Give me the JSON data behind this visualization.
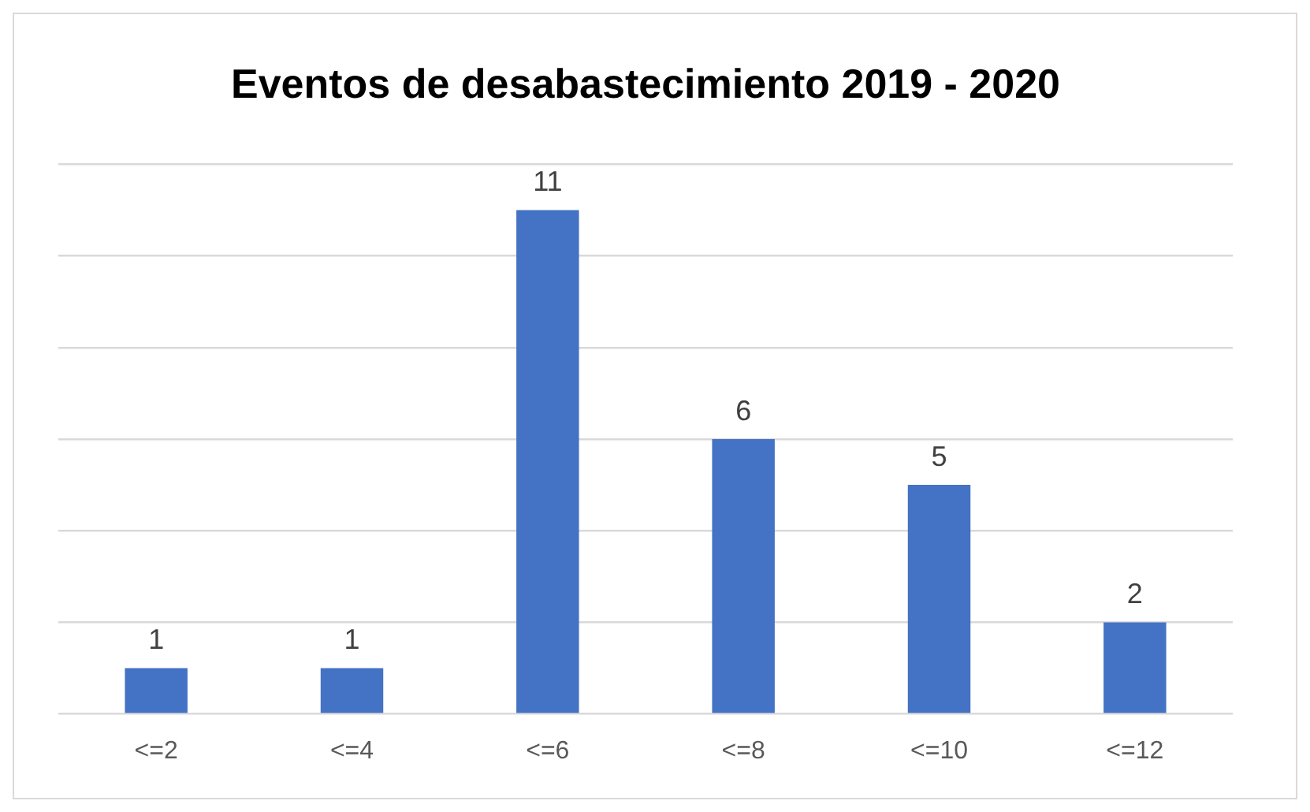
{
  "chart_data": {
    "type": "bar",
    "title": "Eventos de desabastecimiento 2019 - 2020",
    "categories": [
      "<=2",
      "<=4",
      "<=6",
      "<=8",
      "<=10",
      "<=12"
    ],
    "values": [
      1,
      1,
      11,
      6,
      5,
      2
    ],
    "color": "#4472c4",
    "ylim": [
      0,
      12
    ],
    "yticks": [
      {
        "value": 0,
        "label": null
      },
      {
        "value": 2,
        "label": null
      },
      {
        "value": 4,
        "label": null
      },
      {
        "value": 6,
        "label": null
      },
      {
        "value": 8,
        "label": null
      },
      {
        "value": 10,
        "label": null
      },
      {
        "value": 12,
        "label": null
      }
    ],
    "tick_labels": "x",
    "grid": "y",
    "data_labels": true,
    "legend": false
  }
}
